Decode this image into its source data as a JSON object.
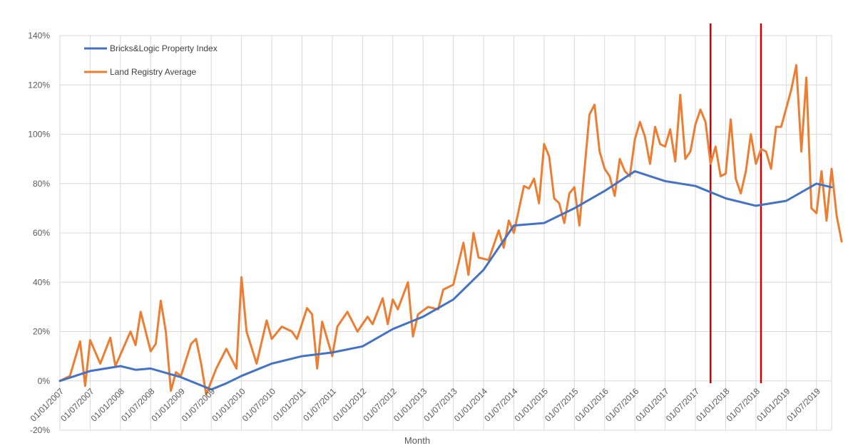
{
  "chart_data": {
    "type": "line",
    "title": "",
    "xlabel": "Month",
    "ylabel": "",
    "ylim": [
      -0.2,
      1.4
    ],
    "y_ticks": [
      "140%",
      "120%",
      "100%",
      "80%",
      "60%",
      "40%",
      "20%",
      "0%",
      "-20%"
    ],
    "x_ticks": [
      "01/01/2007",
      "01/07/2007",
      "01/01/2008",
      "01/07/2008",
      "01/01/2009",
      "01/07/2009",
      "01/01/2010",
      "01/07/2010",
      "01/01/2011",
      "01/07/2011",
      "01/01/2012",
      "01/07/2012",
      "01/01/2013",
      "01/07/2013",
      "01/01/2014",
      "01/07/2014",
      "01/01/2015",
      "01/07/2015",
      "01/01/2016",
      "01/07/2016",
      "01/01/2017",
      "01/07/2017",
      "01/01/2018",
      "01/07/2018",
      "01/01/2019",
      "01/07/2019"
    ],
    "x_range": [
      "01/01/2007",
      "01/10/2019"
    ],
    "grid": true,
    "legend_position": "top-left",
    "vertical_markers": [
      {
        "x": "01/10/2017",
        "color": "#cc0000"
      },
      {
        "x": "01/08/2018",
        "color": "#cc0000"
      }
    ],
    "series": [
      {
        "name": "Bricks&Logic Property Index",
        "color": "#4472c4",
        "points": [
          [
            "01/01/2007",
            0.0
          ],
          [
            "01/07/2007",
            0.04
          ],
          [
            "01/01/2008",
            0.06
          ],
          [
            "01/04/2008",
            0.045
          ],
          [
            "01/07/2008",
            0.05
          ],
          [
            "01/01/2009",
            0.015
          ],
          [
            "01/07/2009",
            -0.035
          ],
          [
            "01/10/2009",
            -0.01
          ],
          [
            "01/01/2010",
            0.02
          ],
          [
            "01/07/2010",
            0.07
          ],
          [
            "01/01/2011",
            0.1
          ],
          [
            "01/07/2011",
            0.115
          ],
          [
            "01/01/2012",
            0.14
          ],
          [
            "01/07/2012",
            0.21
          ],
          [
            "01/01/2013",
            0.26
          ],
          [
            "01/07/2013",
            0.33
          ],
          [
            "01/01/2014",
            0.45
          ],
          [
            "01/07/2014",
            0.63
          ],
          [
            "01/01/2015",
            0.64
          ],
          [
            "01/07/2015",
            0.7
          ],
          [
            "01/01/2016",
            0.77
          ],
          [
            "01/07/2016",
            0.85
          ],
          [
            "01/01/2017",
            0.81
          ],
          [
            "01/07/2017",
            0.79
          ],
          [
            "01/01/2018",
            0.74
          ],
          [
            "01/07/2018",
            0.71
          ],
          [
            "01/01/2019",
            0.73
          ],
          [
            "01/07/2019",
            0.8
          ],
          [
            "01/10/2019",
            0.785
          ]
        ]
      },
      {
        "name": "Land Registry Average",
        "color": "#ed7d31",
        "points": [
          [
            "01/01/2007",
            0.0
          ],
          [
            "01/03/2007",
            0.02
          ],
          [
            "01/05/2007",
            0.16
          ],
          [
            "01/06/2007",
            -0.02
          ],
          [
            "01/07/2007",
            0.165
          ],
          [
            "01/09/2007",
            0.07
          ],
          [
            "01/11/2007",
            0.175
          ],
          [
            "01/12/2007",
            0.06
          ],
          [
            "01/03/2008",
            0.2
          ],
          [
            "01/04/2008",
            0.145
          ],
          [
            "01/05/2008",
            0.28
          ],
          [
            "01/07/2008",
            0.12
          ],
          [
            "01/08/2008",
            0.15
          ],
          [
            "01/09/2008",
            0.325
          ],
          [
            "01/10/2008",
            0.2
          ],
          [
            "01/11/2008",
            -0.04
          ],
          [
            "01/12/2008",
            0.035
          ],
          [
            "01/01/2009",
            0.02
          ],
          [
            "01/03/2009",
            0.15
          ],
          [
            "01/04/2009",
            0.17
          ],
          [
            "01/05/2009",
            0.07
          ],
          [
            "01/06/2009",
            -0.055
          ],
          [
            "01/08/2009",
            0.05
          ],
          [
            "01/10/2009",
            0.13
          ],
          [
            "01/12/2009",
            0.05
          ],
          [
            "01/01/2010",
            0.42
          ],
          [
            "01/02/2010",
            0.2
          ],
          [
            "01/04/2010",
            0.07
          ],
          [
            "01/06/2010",
            0.245
          ],
          [
            "01/07/2010",
            0.17
          ],
          [
            "01/09/2010",
            0.22
          ],
          [
            "01/11/2010",
            0.2
          ],
          [
            "01/12/2010",
            0.17
          ],
          [
            "01/02/2011",
            0.295
          ],
          [
            "01/03/2011",
            0.27
          ],
          [
            "01/04/2011",
            0.05
          ],
          [
            "01/05/2011",
            0.24
          ],
          [
            "01/07/2011",
            0.1
          ],
          [
            "01/08/2011",
            0.22
          ],
          [
            "01/10/2011",
            0.28
          ],
          [
            "01/12/2011",
            0.2
          ],
          [
            "01/02/2012",
            0.26
          ],
          [
            "01/03/2012",
            0.23
          ],
          [
            "01/05/2012",
            0.335
          ],
          [
            "01/06/2012",
            0.23
          ],
          [
            "01/07/2012",
            0.33
          ],
          [
            "01/08/2012",
            0.29
          ],
          [
            "01/10/2012",
            0.4
          ],
          [
            "01/11/2012",
            0.18
          ],
          [
            "01/12/2012",
            0.27
          ],
          [
            "01/02/2013",
            0.3
          ],
          [
            "01/04/2013",
            0.29
          ],
          [
            "01/05/2013",
            0.37
          ],
          [
            "01/07/2013",
            0.39
          ],
          [
            "01/09/2013",
            0.56
          ],
          [
            "01/10/2013",
            0.43
          ],
          [
            "01/11/2013",
            0.6
          ],
          [
            "01/12/2013",
            0.5
          ],
          [
            "01/02/2014",
            0.49
          ],
          [
            "01/04/2014",
            0.61
          ],
          [
            "01/05/2014",
            0.54
          ],
          [
            "01/06/2014",
            0.65
          ],
          [
            "01/07/2014",
            0.6
          ],
          [
            "01/09/2014",
            0.79
          ],
          [
            "01/10/2014",
            0.78
          ],
          [
            "01/11/2014",
            0.82
          ],
          [
            "01/12/2014",
            0.72
          ],
          [
            "01/01/2015",
            0.96
          ],
          [
            "01/02/2015",
            0.91
          ],
          [
            "01/03/2015",
            0.74
          ],
          [
            "01/04/2015",
            0.72
          ],
          [
            "01/05/2015",
            0.64
          ],
          [
            "01/06/2015",
            0.76
          ],
          [
            "01/07/2015",
            0.785
          ],
          [
            "01/08/2015",
            0.63
          ],
          [
            "01/10/2015",
            1.08
          ],
          [
            "01/11/2015",
            1.12
          ],
          [
            "01/12/2015",
            0.93
          ],
          [
            "01/01/2016",
            0.86
          ],
          [
            "01/02/2016",
            0.83
          ],
          [
            "01/03/2016",
            0.75
          ],
          [
            "01/04/2016",
            0.9
          ],
          [
            "01/05/2016",
            0.85
          ],
          [
            "01/06/2016",
            0.83
          ],
          [
            "01/07/2016",
            0.98
          ],
          [
            "01/08/2016",
            1.05
          ],
          [
            "01/09/2016",
            0.99
          ],
          [
            "01/10/2016",
            0.88
          ],
          [
            "01/11/2016",
            1.03
          ],
          [
            "01/12/2016",
            0.96
          ],
          [
            "01/01/2017",
            0.95
          ],
          [
            "01/02/2017",
            1.02
          ],
          [
            "01/03/2017",
            0.89
          ],
          [
            "01/04/2017",
            1.16
          ],
          [
            "01/05/2017",
            0.9
          ],
          [
            "01/06/2017",
            0.93
          ],
          [
            "01/07/2017",
            1.04
          ],
          [
            "01/08/2017",
            1.1
          ],
          [
            "01/09/2017",
            1.05
          ],
          [
            "01/10/2017",
            0.88
          ],
          [
            "01/11/2017",
            0.95
          ],
          [
            "01/12/2017",
            0.83
          ],
          [
            "01/01/2018",
            0.84
          ],
          [
            "01/02/2018",
            1.06
          ],
          [
            "01/03/2018",
            0.82
          ],
          [
            "01/04/2018",
            0.76
          ],
          [
            "01/05/2018",
            0.85
          ],
          [
            "01/06/2018",
            1.0
          ],
          [
            "01/07/2018",
            0.88
          ],
          [
            "01/08/2018",
            0.94
          ],
          [
            "01/09/2018",
            0.93
          ],
          [
            "01/10/2018",
            0.86
          ],
          [
            "01/11/2018",
            1.03
          ],
          [
            "01/12/2018",
            1.03
          ],
          [
            "01/02/2019",
            1.18
          ],
          [
            "01/03/2019",
            1.28
          ],
          [
            "01/04/2019",
            0.93
          ],
          [
            "01/05/2019",
            1.23
          ],
          [
            "01/06/2019",
            0.7
          ],
          [
            "01/07/2019",
            0.68
          ],
          [
            "01/08/2019",
            0.85
          ],
          [
            "01/09/2019",
            0.65
          ],
          [
            "01/10/2019",
            0.86
          ],
          [
            "01/11/2019",
            0.67
          ],
          [
            "01/12/2019",
            0.565
          ]
        ]
      }
    ]
  }
}
